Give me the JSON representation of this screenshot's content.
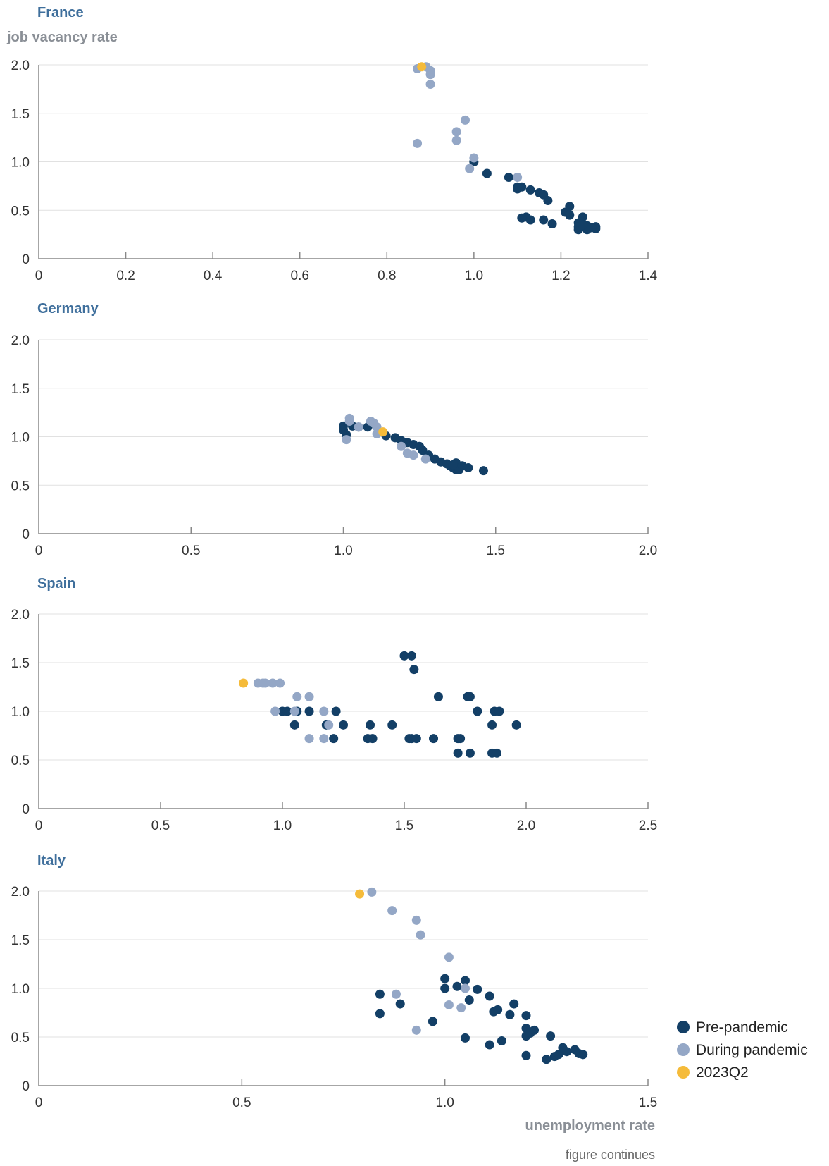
{
  "colors": {
    "pre": "#133f66",
    "during": "#94a7c6",
    "q2": "#f5bb3a",
    "title": "#3f6f9c",
    "axis": "#888888",
    "grid": "#e1e1e1"
  },
  "y_axis_title": "job vacancy rate",
  "x_axis_title": "unemployment rate",
  "footnote": "figure continues",
  "legend": [
    {
      "label": "Pre-pandemic",
      "color": "#133f66"
    },
    {
      "label": "During pandemic",
      "color": "#94a7c6"
    },
    {
      "label": "2023Q2",
      "color": "#f5bb3a"
    }
  ],
  "chart_data": [
    {
      "type": "scatter",
      "title": "France",
      "xlim": [
        0,
        1.4
      ],
      "ylim": [
        0,
        2.0
      ],
      "x_ticks": [
        0,
        0.2,
        0.4,
        0.6,
        0.8,
        1.0,
        1.2,
        1.4
      ],
      "x_tick_labels": [
        "0",
        "0.2",
        "0.4",
        "0.6",
        "0.8",
        "1.0",
        "1.2",
        "1.4"
      ],
      "y_ticks": [
        0,
        0.5,
        1.0,
        1.5,
        2.0
      ],
      "y_tick_labels": [
        "0",
        "0.5",
        "1.0",
        "1.5",
        "2.0"
      ],
      "grid": true,
      "series": [
        {
          "name": "Pre-pandemic",
          "points": [
            [
              1.0,
              1.0
            ],
            [
              1.03,
              0.88
            ],
            [
              1.08,
              0.84
            ],
            [
              1.1,
              0.74
            ],
            [
              1.1,
              0.72
            ],
            [
              1.11,
              0.74
            ],
            [
              1.13,
              0.71
            ],
            [
              1.15,
              0.68
            ],
            [
              1.16,
              0.66
            ],
            [
              1.17,
              0.6
            ],
            [
              1.21,
              0.48
            ],
            [
              1.22,
              0.54
            ],
            [
              1.22,
              0.45
            ],
            [
              1.24,
              0.37
            ],
            [
              1.25,
              0.43
            ],
            [
              1.24,
              0.33
            ],
            [
              1.24,
              0.3
            ],
            [
              1.26,
              0.3
            ],
            [
              1.26,
              0.34
            ],
            [
              1.28,
              0.33
            ],
            [
              1.28,
              0.31
            ],
            [
              1.25,
              0.35
            ],
            [
              1.18,
              0.36
            ],
            [
              1.16,
              0.4
            ],
            [
              1.13,
              0.4
            ],
            [
              1.12,
              0.43
            ],
            [
              1.11,
              0.42
            ],
            [
              1.27,
              0.32
            ]
          ]
        },
        {
          "name": "During pandemic",
          "points": [
            [
              0.87,
              1.96
            ],
            [
              0.89,
              1.98
            ],
            [
              0.9,
              1.94
            ],
            [
              0.9,
              1.9
            ],
            [
              0.9,
              1.8
            ],
            [
              0.98,
              1.43
            ],
            [
              0.96,
              1.31
            ],
            [
              0.96,
              1.22
            ],
            [
              0.87,
              1.19
            ],
            [
              1.0,
              1.04
            ],
            [
              0.99,
              0.93
            ],
            [
              1.1,
              0.84
            ]
          ]
        },
        {
          "name": "2023Q2",
          "points": [
            [
              0.88,
              1.98
            ]
          ]
        }
      ]
    },
    {
      "type": "scatter",
      "title": "Germany",
      "xlim": [
        0,
        2.0
      ],
      "ylim": [
        0,
        2.0
      ],
      "x_ticks": [
        0,
        0.5,
        1.0,
        1.5,
        2.0
      ],
      "x_tick_labels": [
        "0",
        "0.5",
        "1.0",
        "1.5",
        "2.0"
      ],
      "y_ticks": [
        0,
        0.5,
        1.0,
        1.5,
        2.0
      ],
      "y_tick_labels": [
        "0",
        "0.5",
        "1.0",
        "1.5",
        "2.0"
      ],
      "grid": true,
      "series": [
        {
          "name": "Pre-pandemic",
          "points": [
            [
              1.0,
              1.11
            ],
            [
              1.0,
              1.07
            ],
            [
              1.01,
              1.02
            ],
            [
              1.03,
              1.11
            ],
            [
              1.05,
              1.1
            ],
            [
              1.08,
              1.1
            ],
            [
              1.14,
              1.01
            ],
            [
              1.17,
              0.99
            ],
            [
              1.19,
              0.96
            ],
            [
              1.21,
              0.94
            ],
            [
              1.23,
              0.92
            ],
            [
              1.25,
              0.9
            ],
            [
              1.26,
              0.86
            ],
            [
              1.28,
              0.81
            ],
            [
              1.3,
              0.77
            ],
            [
              1.32,
              0.74
            ],
            [
              1.34,
              0.72
            ],
            [
              1.35,
              0.7
            ],
            [
              1.36,
              0.68
            ],
            [
              1.37,
              0.66
            ],
            [
              1.37,
              0.73
            ],
            [
              1.38,
              0.66
            ],
            [
              1.39,
              0.7
            ],
            [
              1.41,
              0.68
            ],
            [
              1.46,
              0.65
            ],
            [
              1.36,
              0.71
            ]
          ]
        },
        {
          "name": "During pandemic",
          "points": [
            [
              1.01,
              0.97
            ],
            [
              1.02,
              1.16
            ],
            [
              1.02,
              1.19
            ],
            [
              1.05,
              1.1
            ],
            [
              1.09,
              1.16
            ],
            [
              1.1,
              1.14
            ],
            [
              1.11,
              1.1
            ],
            [
              1.11,
              1.03
            ],
            [
              1.19,
              0.9
            ],
            [
              1.21,
              0.83
            ],
            [
              1.23,
              0.81
            ],
            [
              1.27,
              0.77
            ]
          ]
        },
        {
          "name": "2023Q2",
          "points": [
            [
              1.13,
              1.05
            ]
          ]
        }
      ]
    },
    {
      "type": "scatter",
      "title": "Spain",
      "xlim": [
        0,
        2.5
      ],
      "ylim": [
        0,
        2.0
      ],
      "x_ticks": [
        0,
        0.5,
        1.0,
        1.5,
        2.0,
        2.5
      ],
      "x_tick_labels": [
        "0",
        "0.5",
        "1.0",
        "1.5",
        "2.0",
        "2.5"
      ],
      "y_ticks": [
        0,
        0.5,
        1.0,
        1.5,
        2.0
      ],
      "y_tick_labels": [
        "0",
        "0.5",
        "1.0",
        "1.5",
        "2.0"
      ],
      "grid": true,
      "series": [
        {
          "name": "Pre-pandemic",
          "points": [
            [
              1.0,
              1.0
            ],
            [
              1.02,
              1.0
            ],
            [
              1.06,
              1.0
            ],
            [
              1.11,
              1.0
            ],
            [
              1.22,
              1.0
            ],
            [
              1.05,
              0.86
            ],
            [
              1.18,
              0.86
            ],
            [
              1.25,
              0.86
            ],
            [
              1.36,
              0.86
            ],
            [
              1.45,
              0.86
            ],
            [
              1.21,
              0.72
            ],
            [
              1.35,
              0.72
            ],
            [
              1.37,
              0.72
            ],
            [
              1.52,
              0.72
            ],
            [
              1.53,
              0.72
            ],
            [
              1.55,
              0.72
            ],
            [
              1.62,
              0.72
            ],
            [
              1.72,
              0.72
            ],
            [
              1.73,
              0.72
            ],
            [
              1.5,
              1.57
            ],
            [
              1.53,
              1.57
            ],
            [
              1.54,
              1.43
            ],
            [
              1.64,
              1.15
            ],
            [
              1.76,
              1.15
            ],
            [
              1.77,
              1.15
            ],
            [
              1.8,
              1.0
            ],
            [
              1.87,
              1.0
            ],
            [
              1.89,
              1.0
            ],
            [
              1.86,
              0.86
            ],
            [
              1.96,
              0.86
            ],
            [
              1.72,
              0.57
            ],
            [
              1.77,
              0.57
            ],
            [
              1.86,
              0.57
            ],
            [
              1.88,
              0.57
            ]
          ]
        },
        {
          "name": "During pandemic",
          "points": [
            [
              0.9,
              1.29
            ],
            [
              0.92,
              1.29
            ],
            [
              0.93,
              1.29
            ],
            [
              0.96,
              1.29
            ],
            [
              0.99,
              1.29
            ],
            [
              1.06,
              1.15
            ],
            [
              1.11,
              1.15
            ],
            [
              0.97,
              1.0
            ],
            [
              1.05,
              1.0
            ],
            [
              1.17,
              1.0
            ],
            [
              1.19,
              0.86
            ],
            [
              1.11,
              0.72
            ],
            [
              1.17,
              0.72
            ]
          ]
        },
        {
          "name": "2023Q2",
          "points": [
            [
              0.84,
              1.29
            ]
          ]
        }
      ]
    },
    {
      "type": "scatter",
      "title": "Italy",
      "xlim": [
        0,
        1.5
      ],
      "ylim": [
        0,
        2.0
      ],
      "x_ticks": [
        0,
        0.5,
        1.0,
        1.5
      ],
      "x_tick_labels": [
        "0",
        "0.5",
        "1.0",
        "1.5"
      ],
      "y_ticks": [
        0,
        0.5,
        1.0,
        1.5,
        2.0
      ],
      "y_tick_labels": [
        "0",
        "0.5",
        "1.0",
        "1.5",
        "2.0"
      ],
      "grid": true,
      "series": [
        {
          "name": "Pre-pandemic",
          "points": [
            [
              0.84,
              0.94
            ],
            [
              0.84,
              0.74
            ],
            [
              0.89,
              0.84
            ],
            [
              0.97,
              0.66
            ],
            [
              1.0,
              1.1
            ],
            [
              1.0,
              1.0
            ],
            [
              1.03,
              1.02
            ],
            [
              1.05,
              1.08
            ],
            [
              1.06,
              0.88
            ],
            [
              1.08,
              0.99
            ],
            [
              1.11,
              0.92
            ],
            [
              1.12,
              0.76
            ],
            [
              1.13,
              0.78
            ],
            [
              1.16,
              0.73
            ],
            [
              1.17,
              0.84
            ],
            [
              1.2,
              0.72
            ],
            [
              1.2,
              0.59
            ],
            [
              1.2,
              0.51
            ],
            [
              1.21,
              0.54
            ],
            [
              1.22,
              0.57
            ],
            [
              1.05,
              0.49
            ],
            [
              1.11,
              0.42
            ],
            [
              1.14,
              0.46
            ],
            [
              1.2,
              0.31
            ],
            [
              1.25,
              0.27
            ],
            [
              1.26,
              0.51
            ],
            [
              1.27,
              0.3
            ],
            [
              1.28,
              0.32
            ],
            [
              1.29,
              0.39
            ],
            [
              1.3,
              0.35
            ],
            [
              1.32,
              0.37
            ],
            [
              1.33,
              0.33
            ],
            [
              1.34,
              0.32
            ]
          ]
        },
        {
          "name": "During pandemic",
          "points": [
            [
              0.82,
              1.99
            ],
            [
              0.87,
              1.8
            ],
            [
              0.93,
              1.7
            ],
            [
              0.94,
              1.55
            ],
            [
              1.01,
              1.32
            ],
            [
              0.88,
              0.94
            ],
            [
              1.01,
              0.83
            ],
            [
              1.04,
              0.8
            ],
            [
              1.05,
              1.0
            ],
            [
              0.93,
              0.57
            ]
          ]
        },
        {
          "name": "2023Q2",
          "points": [
            [
              0.79,
              1.97
            ]
          ]
        }
      ]
    }
  ]
}
